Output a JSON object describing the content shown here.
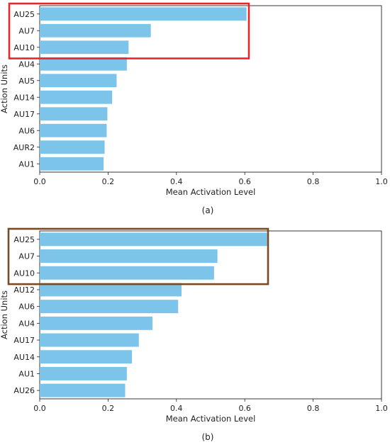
{
  "chart_data": [
    {
      "type": "bar",
      "orientation": "horizontal",
      "panel_label": "(a)",
      "xlabel": "Mean Activation Level",
      "ylabel": "Action Units",
      "xlim": [
        0,
        1
      ],
      "xticks": [
        "0.0",
        "0.2",
        "0.4",
        "0.6",
        "0.8",
        "1.0"
      ],
      "grid": false,
      "bar_color": "#7cc4ea",
      "highlight": {
        "categories": [
          "AU25",
          "AU7",
          "AU10"
        ],
        "color": "#e8262a"
      },
      "categories": [
        "AU25",
        "AU7",
        "AU10",
        "AU4",
        "AU5",
        "AU14",
        "AU17",
        "AU6",
        "AUR2",
        "AU1"
      ],
      "values": [
        0.605,
        0.325,
        0.26,
        0.255,
        0.225,
        0.212,
        0.198,
        0.196,
        0.19,
        0.187
      ]
    },
    {
      "type": "bar",
      "orientation": "horizontal",
      "panel_label": "(b)",
      "xlabel": "Mean Activation Level",
      "ylabel": "Action Units",
      "xlim": [
        0,
        1
      ],
      "xticks": [
        "0.0",
        "0.2",
        "0.4",
        "0.6",
        "0.8",
        "1.0"
      ],
      "grid": false,
      "bar_color": "#7cc4ea",
      "highlight": {
        "categories": [
          "AU25",
          "AU7",
          "AU10"
        ],
        "color": "#7a4a22"
      },
      "categories": [
        "AU25",
        "AU7",
        "AU10",
        "AU12",
        "AU6",
        "AU4",
        "AU17",
        "AU14",
        "AU1",
        "AU26"
      ],
      "values": [
        0.665,
        0.52,
        0.51,
        0.415,
        0.405,
        0.33,
        0.29,
        0.27,
        0.255,
        0.25
      ]
    }
  ]
}
